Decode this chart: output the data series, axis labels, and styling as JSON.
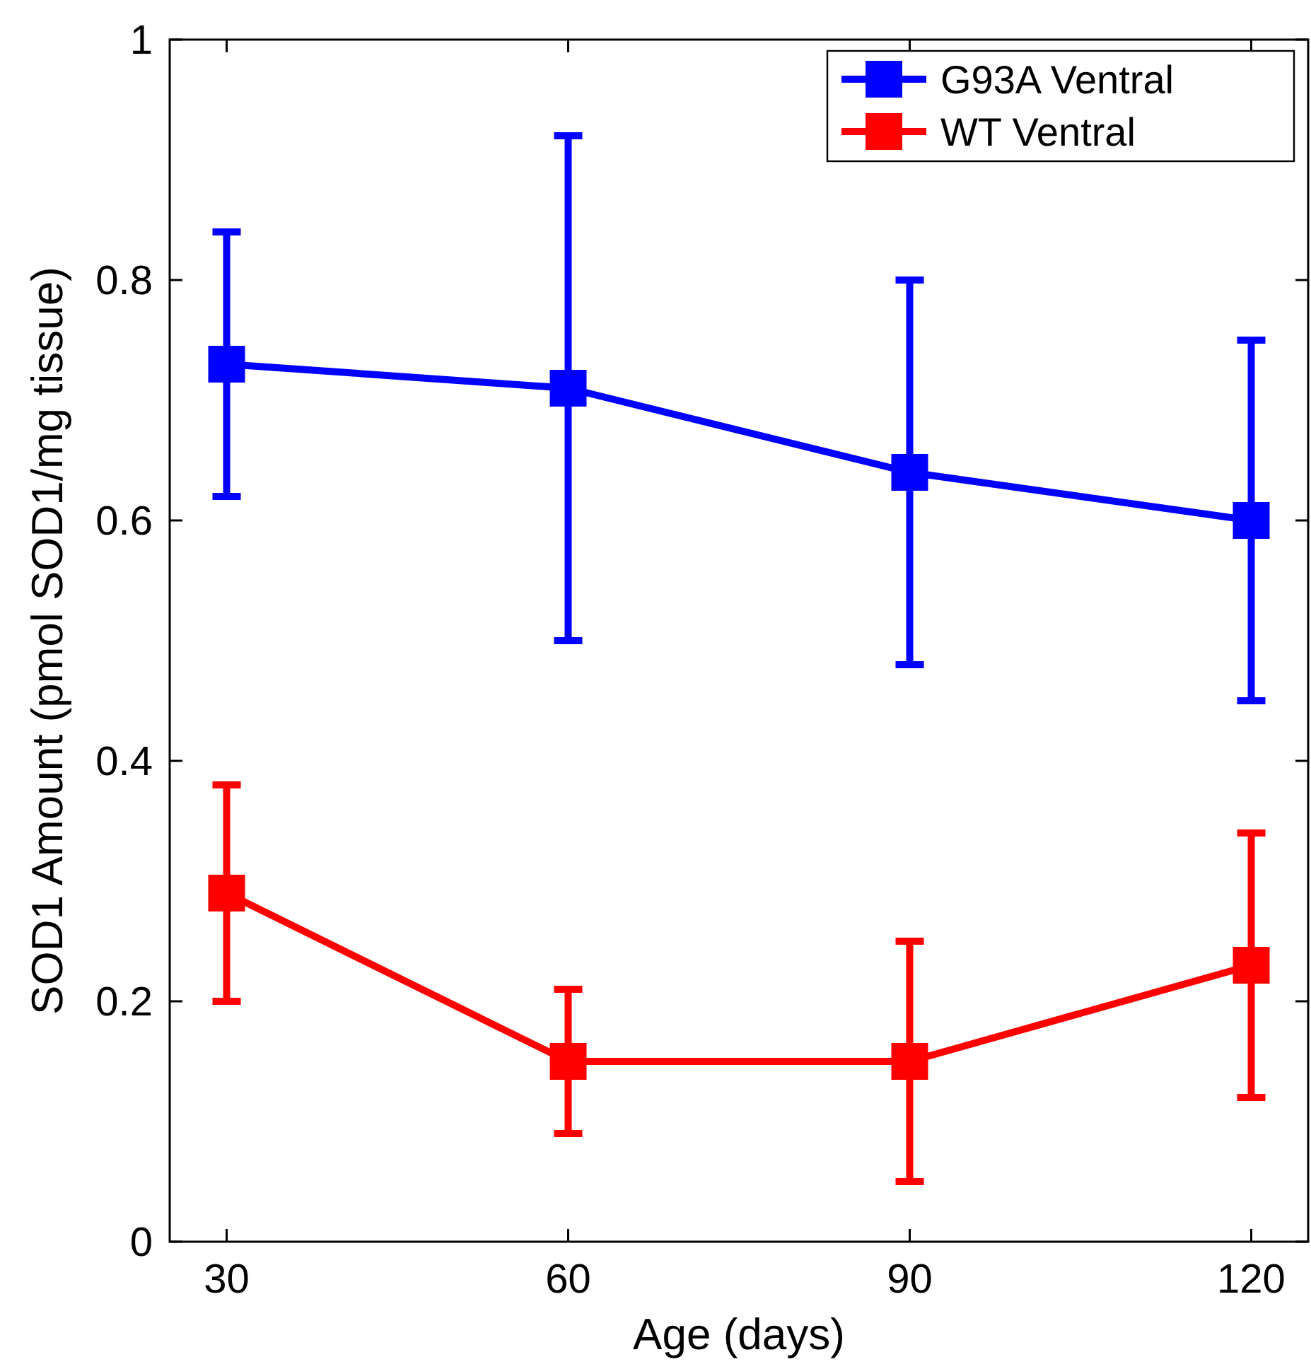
{
  "chart_data": {
    "type": "line",
    "xlabel": "Age (days)",
    "ylabel": "SOD1 Amount (pmol SOD1/mg tissue)",
    "x": [
      30,
      60,
      90,
      120
    ],
    "series": [
      {
        "name": "G93A Ventral",
        "color": "#0000ff",
        "values": [
          0.73,
          0.71,
          0.64,
          0.6
        ],
        "errors": [
          [
            0.62,
            0.84
          ],
          [
            0.5,
            0.92
          ],
          [
            0.48,
            0.8
          ],
          [
            0.45,
            0.75
          ]
        ]
      },
      {
        "name": "WT Ventral",
        "color": "#ff0000",
        "values": [
          0.29,
          0.15,
          0.15,
          0.23
        ],
        "errors": [
          [
            0.2,
            0.38
          ],
          [
            0.09,
            0.21
          ],
          [
            0.05,
            0.25
          ],
          [
            0.12,
            0.34
          ]
        ]
      }
    ],
    "xlim": [
      25,
      125
    ],
    "xticks": [
      30,
      60,
      90,
      120
    ],
    "ylim": [
      0,
      1
    ],
    "yticks": [
      0,
      0.2,
      0.4,
      0.6,
      0.8,
      1
    ],
    "legend": "top right",
    "marker": "square",
    "line_style": "solid",
    "grid": false
  }
}
